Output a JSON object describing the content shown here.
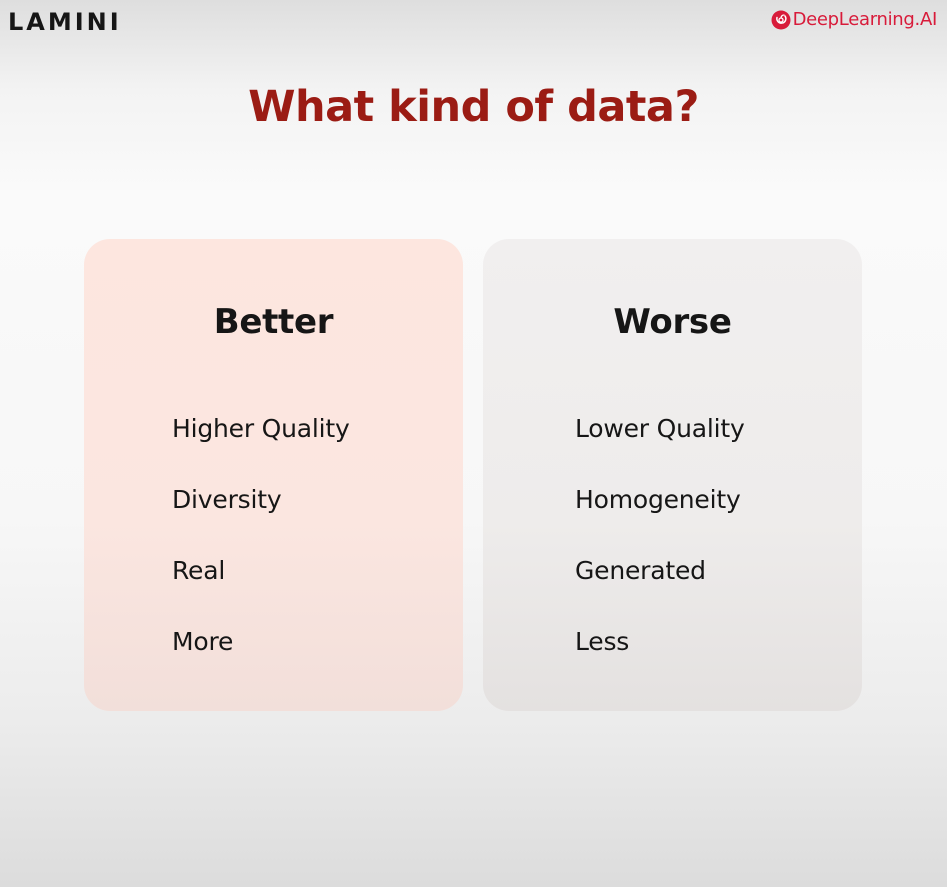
{
  "header": {
    "left_logo": "LAMINI",
    "right_logo": "DeepLearning.AI",
    "right_logo_icon": "deeplearning-ai-mark-icon",
    "right_logo_color": "#d81b3a"
  },
  "slide": {
    "title": "What kind of data?",
    "title_color": "#9b1c14",
    "better": {
      "heading": "Better",
      "items": [
        "Higher Quality",
        "Diversity",
        "Real",
        "More"
      ],
      "background": "#fde6df"
    },
    "worse": {
      "heading": "Worse",
      "items": [
        "Lower Quality",
        "Homogeneity",
        "Generated",
        "Less"
      ],
      "background": "#f0eeee"
    }
  }
}
